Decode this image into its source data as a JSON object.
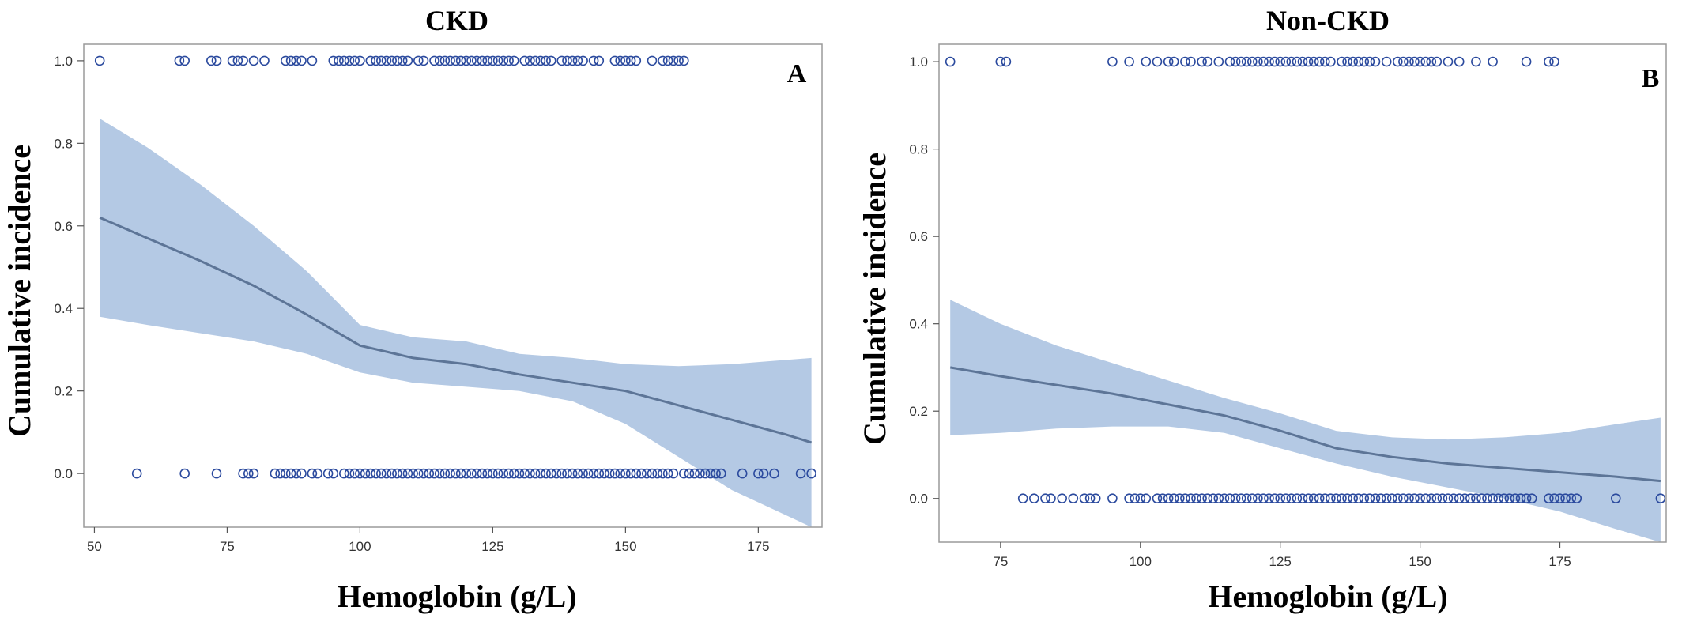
{
  "chart_data": [
    {
      "type": "line",
      "title": "CKD",
      "panel_letter": "A",
      "xlabel": "Hemoglobin (g/L)",
      "ylabel": "Cumulative incidence",
      "xlim": [
        48,
        187
      ],
      "ylim": [
        -0.13,
        1.04
      ],
      "xticks": [
        50,
        75,
        100,
        125,
        150,
        175
      ],
      "yticks": [
        0.0,
        0.2,
        0.4,
        0.6,
        0.8,
        1.0
      ],
      "grid": false,
      "colors": {
        "band": "#b4c9e4",
        "line": "#5d7597",
        "points": "#2b4a9e"
      },
      "fit": {
        "x": [
          51,
          60,
          70,
          80,
          90,
          100,
          110,
          120,
          130,
          140,
          150,
          160,
          170,
          180,
          185
        ],
        "y": [
          0.62,
          0.57,
          0.515,
          0.455,
          0.385,
          0.31,
          0.28,
          0.265,
          0.24,
          0.22,
          0.2,
          0.165,
          0.13,
          0.095,
          0.075
        ]
      },
      "ci": {
        "x": [
          51,
          60,
          70,
          80,
          90,
          100,
          110,
          120,
          130,
          140,
          150,
          160,
          170,
          180,
          185
        ],
        "lower": [
          0.38,
          0.36,
          0.34,
          0.32,
          0.29,
          0.245,
          0.22,
          0.21,
          0.2,
          0.175,
          0.12,
          0.04,
          -0.04,
          -0.1,
          -0.13
        ],
        "upper": [
          0.86,
          0.79,
          0.7,
          0.6,
          0.49,
          0.36,
          0.33,
          0.32,
          0.29,
          0.28,
          0.265,
          0.26,
          0.265,
          0.275,
          0.28
        ]
      },
      "events_y1": [
        51,
        66,
        67,
        72,
        73,
        76,
        77,
        78,
        80,
        82,
        86,
        87,
        88,
        89,
        91,
        95,
        96,
        97,
        98,
        99,
        100,
        102,
        103,
        104,
        105,
        106,
        107,
        108,
        109,
        111,
        112,
        114,
        115,
        116,
        117,
        118,
        119,
        120,
        121,
        122,
        123,
        124,
        125,
        126,
        127,
        128,
        129,
        131,
        132,
        133,
        134,
        135,
        136,
        138,
        139,
        140,
        141,
        142,
        144,
        145,
        148,
        149,
        150,
        151,
        152,
        155,
        157,
        158,
        159,
        160,
        161
      ],
      "events_y0": [
        58,
        67,
        73,
        78,
        79,
        80,
        84,
        85,
        86,
        87,
        88,
        89,
        91,
        92,
        94,
        95,
        97,
        98,
        99,
        100,
        101,
        102,
        103,
        104,
        105,
        106,
        107,
        108,
        109,
        110,
        111,
        112,
        113,
        114,
        115,
        116,
        117,
        118,
        119,
        120,
        121,
        122,
        123,
        124,
        125,
        126,
        127,
        128,
        129,
        130,
        131,
        132,
        133,
        134,
        135,
        136,
        137,
        138,
        139,
        140,
        141,
        142,
        143,
        144,
        145,
        146,
        147,
        148,
        149,
        150,
        151,
        152,
        153,
        154,
        155,
        156,
        157,
        158,
        159,
        161,
        162,
        163,
        164,
        165,
        166,
        167,
        168,
        172,
        175,
        176,
        178,
        183,
        185
      ]
    },
    {
      "type": "line",
      "title": "Non-CKD",
      "panel_letter": "B",
      "xlabel": "Hemoglobin (g/L)",
      "ylabel": "Cumulative incidence",
      "xlim": [
        64,
        194
      ],
      "ylim": [
        -0.1,
        1.04
      ],
      "xticks": [
        75,
        100,
        125,
        150,
        175
      ],
      "yticks": [
        0.0,
        0.2,
        0.4,
        0.6,
        0.8,
        1.0
      ],
      "grid": false,
      "colors": {
        "band": "#b4c9e4",
        "line": "#5d7597",
        "points": "#2b4a9e"
      },
      "fit": {
        "x": [
          66,
          75,
          85,
          95,
          105,
          115,
          125,
          135,
          145,
          155,
          165,
          175,
          185,
          193
        ],
        "y": [
          0.3,
          0.28,
          0.26,
          0.24,
          0.215,
          0.19,
          0.155,
          0.115,
          0.095,
          0.08,
          0.07,
          0.06,
          0.05,
          0.04
        ]
      },
      "ci": {
        "x": [
          66,
          75,
          85,
          95,
          105,
          115,
          125,
          135,
          145,
          155,
          165,
          175,
          185,
          193
        ],
        "lower": [
          0.145,
          0.15,
          0.16,
          0.165,
          0.165,
          0.15,
          0.115,
          0.08,
          0.05,
          0.025,
          0.0,
          -0.03,
          -0.07,
          -0.1
        ],
        "upper": [
          0.455,
          0.4,
          0.35,
          0.31,
          0.27,
          0.23,
          0.195,
          0.155,
          0.14,
          0.135,
          0.14,
          0.15,
          0.17,
          0.185
        ]
      },
      "events_y1": [
        66,
        75,
        76,
        95,
        98,
        101,
        103,
        105,
        106,
        108,
        109,
        111,
        112,
        114,
        116,
        117,
        118,
        119,
        120,
        121,
        122,
        123,
        124,
        125,
        126,
        127,
        128,
        129,
        130,
        131,
        132,
        133,
        134,
        136,
        137,
        138,
        139,
        140,
        141,
        142,
        144,
        146,
        147,
        148,
        149,
        150,
        151,
        152,
        153,
        155,
        157,
        160,
        163,
        169,
        173,
        174
      ],
      "events_y0": [
        79,
        81,
        83,
        84,
        86,
        88,
        90,
        91,
        92,
        95,
        98,
        99,
        100,
        101,
        103,
        104,
        105,
        106,
        107,
        108,
        109,
        110,
        111,
        112,
        113,
        114,
        115,
        116,
        117,
        118,
        119,
        120,
        121,
        122,
        123,
        124,
        125,
        126,
        127,
        128,
        129,
        130,
        131,
        132,
        133,
        134,
        135,
        136,
        137,
        138,
        139,
        140,
        141,
        142,
        143,
        144,
        145,
        146,
        147,
        148,
        149,
        150,
        151,
        152,
        153,
        154,
        155,
        156,
        157,
        158,
        159,
        160,
        161,
        162,
        163,
        164,
        165,
        166,
        167,
        168,
        169,
        170,
        173,
        174,
        175,
        176,
        177,
        178,
        185,
        193
      ]
    }
  ]
}
